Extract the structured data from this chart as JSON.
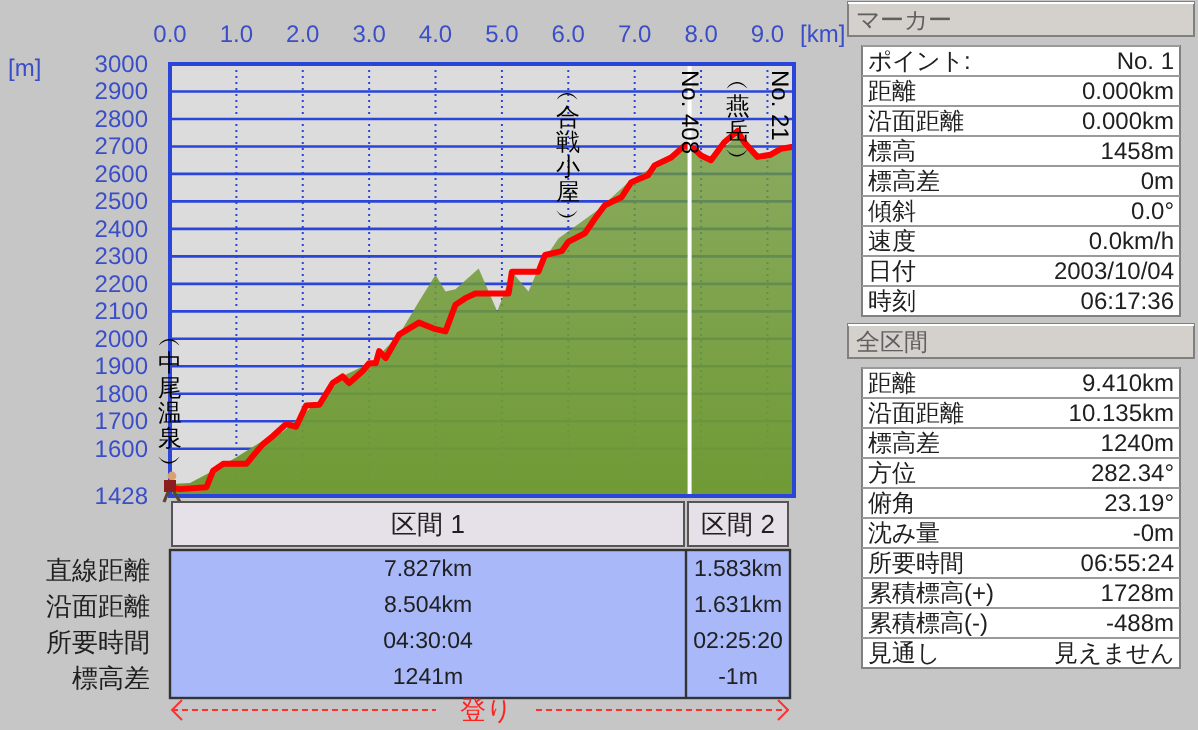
{
  "chart_data": [
    {
      "type": "area",
      "xlabel": "[km]",
      "ylabel": "[m]",
      "xlim": [
        0,
        9.4
      ],
      "ylim": [
        1428,
        3000
      ],
      "xticks": [
        {
          "value": 0,
          "label": "0.0"
        },
        {
          "value": 1,
          "label": "1.0"
        },
        {
          "value": 2,
          "label": "2.0"
        },
        {
          "value": 3,
          "label": "3.0"
        },
        {
          "value": 4,
          "label": "4.0"
        },
        {
          "value": 5,
          "label": "5.0"
        },
        {
          "value": 6,
          "label": "6.0"
        },
        {
          "value": 7,
          "label": "7.0"
        },
        {
          "value": 8,
          "label": "8.0"
        },
        {
          "value": 9,
          "label": "9.0"
        }
      ],
      "yticks": [
        1428,
        1600,
        1700,
        1800,
        1900,
        2000,
        2100,
        2200,
        2300,
        2400,
        2500,
        2600,
        2700,
        2800,
        2900,
        3000
      ],
      "grid": true,
      "series": [
        {
          "type": "area",
          "color": "#6f9a35",
          "x": [
            0,
            0.3,
            0.65,
            1.0,
            1.35,
            1.7,
            2.3,
            2.65,
            3.05,
            3.45,
            3.75,
            4.0,
            4.15,
            4.3,
            4.65,
            4.93,
            5.15,
            5.4,
            5.55,
            5.85,
            6.45,
            6.95,
            7.5,
            7.75,
            8.15,
            8.55,
            8.85,
            9.3,
            9.4
          ],
          "values": [
            1472,
            1475,
            1520,
            1569,
            1622,
            1662,
            1786,
            1870,
            1916,
            2015,
            2136,
            2233,
            2172,
            2180,
            2256,
            2099,
            2244,
            2172,
            2256,
            2365,
            2470,
            2580,
            2655,
            2715,
            2650,
            2740,
            2655,
            2690,
            2695
          ]
        },
        {
          "type": "line",
          "color": "#ff0000",
          "x": [
            0,
            0.15,
            0.55,
            0.65,
            0.8,
            1.15,
            1.25,
            1.4,
            1.55,
            1.75,
            1.9,
            2.05,
            2.25,
            2.45,
            2.6,
            2.7,
            2.9,
            3.0,
            3.1,
            3.15,
            3.25,
            3.45,
            3.75,
            4.0,
            4.15,
            4.3,
            4.45,
            4.6,
            5.1,
            5.15,
            5.55,
            5.65,
            5.9,
            6.0,
            6.25,
            6.4,
            6.55,
            6.8,
            6.95,
            7.2,
            7.3,
            7.55,
            7.75,
            7.9,
            8.0,
            8.15,
            8.35,
            8.55,
            8.65,
            8.85,
            9.05,
            9.2,
            9.36
          ],
          "values": [
            1458,
            1453,
            1460,
            1520,
            1545,
            1545,
            1574,
            1617,
            1646,
            1690,
            1680,
            1757,
            1760,
            1839,
            1863,
            1839,
            1882,
            1911,
            1911,
            1955,
            1930,
            2015,
            2059,
            2035,
            2027,
            2124,
            2148,
            2165,
            2165,
            2244,
            2244,
            2305,
            2319,
            2353,
            2384,
            2437,
            2486,
            2515,
            2570,
            2595,
            2631,
            2660,
            2703,
            2690,
            2667,
            2650,
            2715,
            2756,
            2715,
            2662,
            2670,
            2691,
            2698
          ]
        }
      ],
      "ref_lines": [
        {
          "axis": "x",
          "value": 7.827,
          "color": "#ffffff"
        }
      ],
      "annotations": [
        {
          "text": "︵中尾温泉︶",
          "x": 0,
          "y": 1458
        },
        {
          "text": "︵合戦小屋︶",
          "x": 6.0,
          "y": 2353
        },
        {
          "text": "No. 408",
          "x": 7.827,
          "y": 2703
        },
        {
          "text": "︵燕岳︶",
          "x": 8.55,
          "y": 2756
        },
        {
          "text": "No. 21",
          "x": 9.36,
          "y": 2698
        }
      ]
    },
    {
      "type": "other",
      "categories": [
        "区間 1",
        "区間 2"
      ],
      "y_categories": [
        "直線距離",
        "沿面距離",
        "所要時間",
        "標高差"
      ],
      "cell_labels": [
        [
          "7.827km",
          "1.583km"
        ],
        [
          "8.504km",
          "1.631km"
        ],
        [
          "04:30:04",
          "02:25:20"
        ],
        [
          "1241m",
          "-1m"
        ]
      ],
      "annotations": [
        "登り"
      ]
    },
    {
      "type": "other",
      "title": "マーカー",
      "y_categories": [
        "ポイント:",
        "距離",
        "沿面距離",
        "標高",
        "標高差",
        "傾斜",
        "速度",
        "日付",
        "時刻"
      ],
      "cell_labels": [
        [
          "No. 1"
        ],
        [
          "0.000km"
        ],
        [
          "0.000km"
        ],
        [
          "1458m"
        ],
        [
          "0m"
        ],
        [
          "0.0°"
        ],
        [
          "0.0km/h"
        ],
        [
          "2003/10/04"
        ],
        [
          "06:17:36"
        ]
      ]
    },
    {
      "type": "other",
      "title": "全区間",
      "y_categories": [
        "距離",
        "沿面距離",
        "標高差",
        "方位",
        "俯角",
        "沈み量",
        "所要時間",
        "累積標高(+)",
        "累積標高(-)",
        "見通し"
      ],
      "cell_labels": [
        [
          "9.410km"
        ],
        [
          "10.135km"
        ],
        [
          "1240m"
        ],
        [
          "282.34°"
        ],
        [
          "23.19°"
        ],
        [
          "-0m"
        ],
        [
          "06:55:24"
        ],
        [
          "1728m"
        ],
        [
          "-488m"
        ],
        [
          "見えません"
        ]
      ]
    }
  ]
}
